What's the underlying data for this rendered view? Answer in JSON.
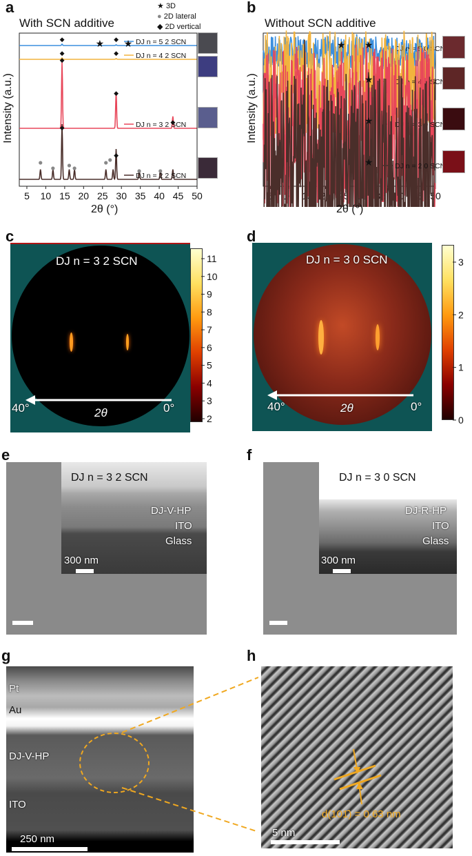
{
  "panels": {
    "a": {
      "letter": "a",
      "title": "With SCN additive",
      "legend": {
        "star": "3D",
        "circle": "2D lateral",
        "diamond": "2D vertical"
      },
      "xlabel_sym": "2θ (°)",
      "ylabel": "Intensity (a.u.)",
      "series_labels": [
        "DJ n = 5 2 SCN",
        "DJ n = 4 2 SCN",
        "DJ n = 3 2 SCN",
        "DJ n = 2 2 SCN"
      ]
    },
    "b": {
      "letter": "b",
      "title": "Without SCN additive",
      "xlabel_sym": "2θ (°)",
      "ylabel": "Intensity (a.u.)",
      "series_labels": [
        "DJ n = 5 0 SCN",
        "DJ n = 4 0 SCN",
        "DJ n = 3 0 SCN",
        "DJ n = 2 0 SCN"
      ]
    },
    "c": {
      "letter": "c",
      "label": "DJ n = 3 2 SCN",
      "angle_left": "40°",
      "angle_right": "0°",
      "axis": "2θ",
      "colorbar_ticks": [
        "11",
        "10",
        "9",
        "8",
        "7",
        "6",
        "5",
        "4",
        "3",
        "2"
      ]
    },
    "d": {
      "letter": "d",
      "label": "DJ n = 3 0 SCN",
      "angle_left": "40°",
      "angle_right": "0°",
      "axis": "2θ",
      "colorbar_ticks": [
        "3",
        "2",
        "1",
        "0"
      ]
    },
    "e": {
      "letter": "e",
      "label": "DJ n = 3 2 SCN",
      "layers": [
        "DJ-V-HP",
        "ITO",
        "Glass"
      ],
      "scale": "300 nm"
    },
    "f": {
      "letter": "f",
      "label": "DJ n = 3 0 SCN",
      "layers": [
        "DJ-R-HP",
        "ITO",
        "Glass"
      ],
      "scale": "300 nm"
    },
    "g": {
      "letter": "g",
      "layers": [
        "Pt",
        "Au",
        "DJ-V-HP",
        "ITO"
      ],
      "scale": "250 nm"
    },
    "h": {
      "letter": "h",
      "annotation": "d(101̄) = 0.63 nm",
      "scale": "5 nm"
    }
  },
  "chart_data": [
    {
      "type": "line",
      "title": "With SCN additive",
      "xlabel": "2θ (°)",
      "ylabel": "Intensity (a.u.)",
      "xlim": [
        3,
        50
      ],
      "xticks": [
        5,
        10,
        15,
        20,
        25,
        30,
        35,
        40,
        45,
        50
      ],
      "series": [
        {
          "name": "DJ n = 5 2 SCN",
          "color": "#3b8fde",
          "peaks": [
            14.3,
            28.6
          ]
        },
        {
          "name": "DJ n = 4 2 SCN",
          "color": "#f2b33d",
          "peaks": [
            14.3,
            28.6
          ]
        },
        {
          "name": "DJ n = 3 2 SCN",
          "color": "#e8475a",
          "peaks": [
            14.3,
            28.6,
            43.6
          ]
        },
        {
          "name": "DJ n = 2 2 SCN",
          "color": "#4a2e2a",
          "peaks": [
            8.6,
            11.9,
            14.3,
            16.2,
            17.6,
            25.9,
            27.8,
            28.6,
            34.7,
            40.3,
            43.6
          ]
        }
      ]
    },
    {
      "type": "line",
      "title": "Without SCN additive",
      "xlabel": "2θ (°)",
      "ylabel": "Intensity (a.u.)",
      "xlim": [
        3,
        50
      ],
      "xticks": [
        5,
        10,
        15,
        20,
        25,
        30,
        35,
        40,
        45,
        50
      ],
      "series": [
        {
          "name": "DJ n = 5 0 SCN",
          "color": "#3b8fde",
          "peaks": [
            14.3,
            28.6,
            31.8
          ]
        },
        {
          "name": "DJ n = 4 0 SCN",
          "color": "#f2b33d",
          "peaks": [
            14.3,
            28.6,
            31.8
          ]
        },
        {
          "name": "DJ n = 3 0 SCN",
          "color": "#e8475a",
          "peaks": [
            14.3,
            28.6,
            31.8
          ]
        },
        {
          "name": "DJ n = 2 0 SCN",
          "color": "#4a2e2a",
          "peaks": [
            14.3,
            28.6,
            31.8
          ]
        }
      ]
    }
  ]
}
